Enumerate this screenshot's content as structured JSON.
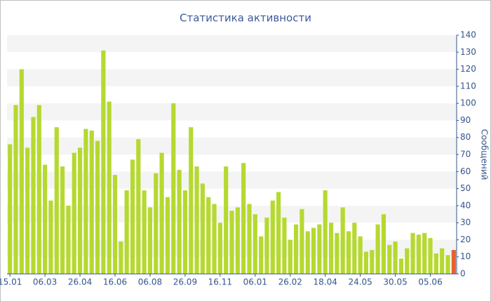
{
  "chart_data": {
    "type": "bar",
    "title": "Статистика активности",
    "y_label": "Сообщений",
    "categories": [
      "15.01",
      null,
      null,
      null,
      null,
      null,
      "06.03",
      null,
      null,
      null,
      null,
      null,
      "26.04",
      null,
      null,
      null,
      null,
      null,
      "16.06",
      null,
      null,
      null,
      null,
      null,
      "06.08",
      null,
      null,
      null,
      null,
      null,
      "26.09",
      null,
      null,
      null,
      null,
      null,
      "16.11",
      null,
      null,
      null,
      null,
      null,
      "06.01",
      null,
      null,
      null,
      null,
      null,
      "26.02",
      null,
      null,
      null,
      null,
      null,
      "18.04",
      null,
      null,
      null,
      null,
      null,
      "24.05",
      null,
      null,
      null,
      null,
      null,
      "30.05",
      null,
      null,
      null,
      null,
      null,
      "05.06",
      null,
      null,
      null,
      null
    ],
    "values": [
      76,
      99,
      120,
      74,
      92,
      99,
      64,
      43,
      86,
      63,
      40,
      71,
      74,
      85,
      84,
      78,
      131,
      101,
      58,
      19,
      49,
      67,
      79,
      49,
      39,
      59,
      71,
      45,
      100,
      61,
      49,
      86,
      63,
      53,
      45,
      41,
      30,
      63,
      37,
      39,
      65,
      41,
      35,
      22,
      33,
      43,
      48,
      33,
      20,
      29,
      38,
      25,
      27,
      29,
      49,
      30,
      24,
      39,
      25,
      30,
      22,
      13,
      14,
      29,
      35,
      17,
      19,
      9,
      15,
      24,
      23,
      24,
      21,
      12,
      15,
      11,
      14
    ],
    "colors": [
      "#b5d930",
      "#b5d930",
      "#b5d930",
      "#b5d930",
      "#b5d930",
      "#b5d930",
      "#b5d930",
      "#b5d930",
      "#b5d930",
      "#b5d930",
      "#b5d930",
      "#b5d930",
      "#b5d930",
      "#b5d930",
      "#b5d930",
      "#b5d930",
      "#b5d930",
      "#b5d930",
      "#b5d930",
      "#b5d930",
      "#b5d930",
      "#b5d930",
      "#b5d930",
      "#b5d930",
      "#b5d930",
      "#b5d930",
      "#b5d930",
      "#b5d930",
      "#b5d930",
      "#b5d930",
      "#b5d930",
      "#b5d930",
      "#b5d930",
      "#b5d930",
      "#b5d930",
      "#b5d930",
      "#b5d930",
      "#b5d930",
      "#b5d930",
      "#b5d930",
      "#b5d930",
      "#b5d930",
      "#b5d930",
      "#b5d930",
      "#b5d930",
      "#b5d930",
      "#b5d930",
      "#b5d930",
      "#b5d930",
      "#b5d930",
      "#b5d930",
      "#b5d930",
      "#b5d930",
      "#b5d930",
      "#b5d930",
      "#b5d930",
      "#b5d930",
      "#b5d930",
      "#b5d930",
      "#b5d930",
      "#b5d930",
      "#b5d930",
      "#b5d930",
      "#b5d930",
      "#b5d930",
      "#b5d930",
      "#b5d930",
      "#b5d930",
      "#b5d930",
      "#b5d930",
      "#b5d930",
      "#b5d930",
      "#b5d930",
      "#b5d930",
      "#b5d930",
      "#b5d930",
      "#e8612c"
    ],
    "ylim": [
      0,
      140
    ],
    "yticks": [
      0,
      10,
      20,
      30,
      40,
      50,
      60,
      70,
      80,
      90,
      100,
      110,
      120,
      130,
      140
    ],
    "grid": "bands",
    "y_axis_side": "right"
  }
}
